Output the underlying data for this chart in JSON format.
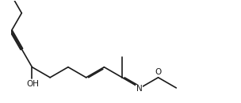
{
  "background": "#ffffff",
  "line_color": "#1a1a1a",
  "line_width": 1.2,
  "font_size": 7.5,
  "label_OH": "OH",
  "label_N": "N",
  "label_O": "O",
  "triple_sep": 0.055,
  "double_sep": 0.055,
  "double_shorten": 0.1,
  "figwidth": 3.04,
  "figheight": 1.3,
  "dpi": 100,
  "xlim": [
    -1.0,
    9.5
  ],
  "ylim": [
    -1.7,
    3.2
  ]
}
